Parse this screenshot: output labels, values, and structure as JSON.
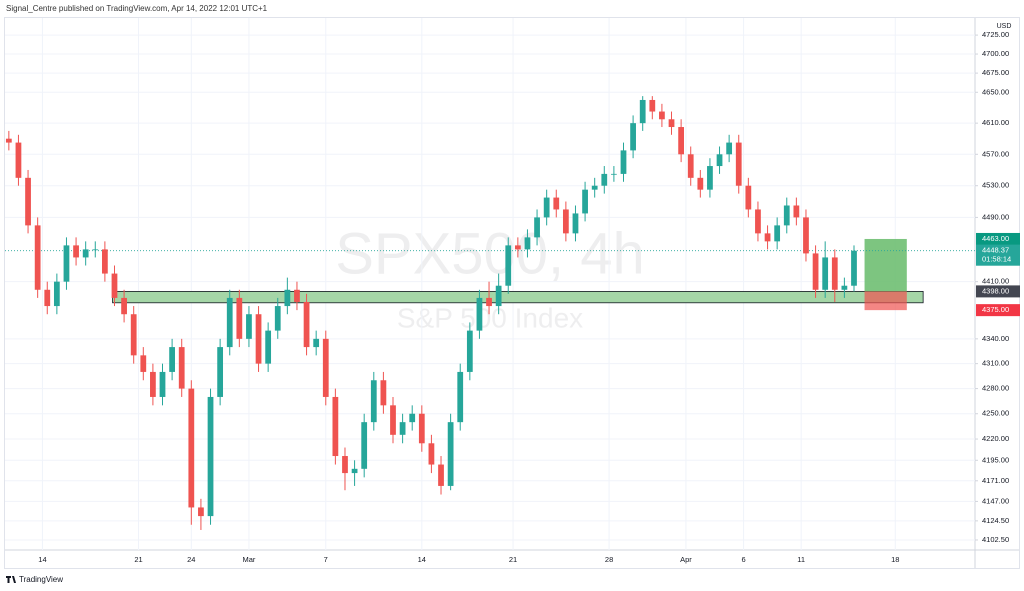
{
  "header": {
    "text": "Signal_Centre published on TradingView.com, Apr 14, 2022 12:01 UTC+1"
  },
  "footer": {
    "brand": "TradingView"
  },
  "chart_data": {
    "type": "candlestick",
    "title": "SPX500, 4h",
    "subtitle": "S&P 500 Index",
    "currency": "USD",
    "log_scale": true,
    "up_color": "#26a69a",
    "down_color": "#ef5350",
    "ylim": [
      4091,
      4745
    ],
    "xlim": [
      -0.4,
      100.6
    ],
    "yticks": [
      {
        "value": 4102.5,
        "label": "4102.50"
      },
      {
        "value": 4124.5,
        "label": "4124.50"
      },
      {
        "value": 4147,
        "label": "4147.00"
      },
      {
        "value": 4171,
        "label": "4171.00"
      },
      {
        "value": 4195,
        "label": "4195.00"
      },
      {
        "value": 4220,
        "label": "4220.00"
      },
      {
        "value": 4250,
        "label": "4250.00"
      },
      {
        "value": 4280,
        "label": "4280.00"
      },
      {
        "value": 4310,
        "label": "4310.00"
      },
      {
        "value": 4340,
        "label": "4340.00"
      },
      {
        "value": 4410,
        "label": "4410.00"
      },
      {
        "value": 4490,
        "label": "4490.00"
      },
      {
        "value": 4530,
        "label": "4530.00"
      },
      {
        "value": 4570,
        "label": "4570.00"
      },
      {
        "value": 4610,
        "label": "4610.00"
      },
      {
        "value": 4650,
        "label": "4650.00"
      },
      {
        "value": 4675,
        "label": "4675.00"
      },
      {
        "value": 4700,
        "label": "4700.00"
      },
      {
        "value": 4725,
        "label": "4725.00"
      }
    ],
    "xticks": [
      {
        "value": 3.5,
        "label": "14"
      },
      {
        "value": 13.5,
        "label": "21"
      },
      {
        "value": 19,
        "label": "24"
      },
      {
        "value": 25,
        "label": "Mar"
      },
      {
        "value": 33,
        "label": "7"
      },
      {
        "value": 43,
        "label": "14"
      },
      {
        "value": 52.5,
        "label": "21"
      },
      {
        "value": 62.5,
        "label": "28"
      },
      {
        "value": 70.5,
        "label": "Apr"
      },
      {
        "value": 76.5,
        "label": "6"
      },
      {
        "value": 82.5,
        "label": "11"
      },
      {
        "value": 92.3,
        "label": "18"
      }
    ],
    "open": [
      4590,
      4585,
      4540,
      4480,
      4400,
      4380,
      4410,
      4455,
      4440,
      4450,
      4450,
      4420,
      4390,
      4370,
      4320,
      4300,
      4270,
      4300,
      4330,
      4280,
      4140,
      4130,
      4270,
      4330,
      4390,
      4340,
      4370,
      4310,
      4350,
      4380,
      4400,
      4385,
      4330,
      4340,
      4270,
      4200,
      4180,
      4185,
      4240,
      4290,
      4260,
      4225,
      4240,
      4250,
      4215,
      4190,
      4165,
      4240,
      4300,
      4350,
      4390,
      4380,
      4405,
      4455,
      4450,
      4465,
      4490,
      4515,
      4500,
      4470,
      4495,
      4525,
      4530,
      4545,
      4545,
      4575,
      4610,
      4640,
      4625,
      4615,
      4605,
      4570,
      4540,
      4525,
      4555,
      4570,
      4585,
      4530,
      4500,
      4470,
      4460,
      4480,
      4505,
      4490,
      4445,
      4400,
      4440,
      4400,
      4405
    ],
    "high": [
      4600,
      4595,
      4550,
      4490,
      4410,
      4420,
      4465,
      4465,
      4460,
      4460,
      4460,
      4430,
      4400,
      4380,
      4330,
      4310,
      4310,
      4340,
      4340,
      4290,
      4150,
      4280,
      4340,
      4400,
      4400,
      4380,
      4380,
      4360,
      4390,
      4415,
      4410,
      4395,
      4350,
      4350,
      4280,
      4210,
      4195,
      4250,
      4300,
      4300,
      4270,
      4250,
      4260,
      4260,
      4225,
      4200,
      4250,
      4310,
      4360,
      4400,
      4410,
      4420,
      4465,
      4465,
      4475,
      4500,
      4525,
      4525,
      4510,
      4505,
      4535,
      4540,
      4555,
      4555,
      4585,
      4620,
      4645,
      4645,
      4635,
      4625,
      4615,
      4580,
      4550,
      4565,
      4580,
      4595,
      4595,
      4540,
      4510,
      4480,
      4490,
      4515,
      4515,
      4500,
      4455,
      4460,
      4450,
      4415,
      4455
    ],
    "low": [
      4575,
      4530,
      4470,
      4390,
      4370,
      4370,
      4400,
      4430,
      4430,
      4440,
      4410,
      4380,
      4360,
      4310,
      4290,
      4260,
      4260,
      4290,
      4270,
      4120,
      4114,
      4120,
      4260,
      4320,
      4330,
      4330,
      4300,
      4300,
      4340,
      4370,
      4375,
      4320,
      4320,
      4260,
      4190,
      4160,
      4165,
      4175,
      4230,
      4250,
      4215,
      4215,
      4230,
      4205,
      4180,
      4155,
      4160,
      4230,
      4290,
      4340,
      4370,
      4370,
      4395,
      4440,
      4440,
      4455,
      4480,
      4490,
      4460,
      4460,
      4485,
      4515,
      4520,
      4535,
      4535,
      4565,
      4600,
      4615,
      4605,
      4595,
      4560,
      4530,
      4515,
      4515,
      4545,
      4560,
      4520,
      4490,
      4460,
      4450,
      4450,
      4470,
      4480,
      4435,
      4390,
      4390,
      4385,
      4390,
      4398
    ],
    "close": [
      4585,
      4540,
      4480,
      4400,
      4380,
      4410,
      4455,
      4440,
      4450,
      4450,
      4420,
      4390,
      4370,
      4320,
      4300,
      4270,
      4300,
      4330,
      4280,
      4140,
      4130,
      4270,
      4330,
      4390,
      4340,
      4370,
      4310,
      4350,
      4380,
      4400,
      4385,
      4330,
      4340,
      4270,
      4200,
      4180,
      4185,
      4240,
      4290,
      4260,
      4225,
      4240,
      4250,
      4215,
      4190,
      4165,
      4240,
      4300,
      4350,
      4390,
      4380,
      4405,
      4455,
      4450,
      4465,
      4490,
      4515,
      4500,
      4470,
      4495,
      4525,
      4530,
      4545,
      4545,
      4575,
      4610,
      4640,
      4625,
      4615,
      4605,
      4570,
      4540,
      4525,
      4555,
      4570,
      4585,
      4530,
      4500,
      4470,
      4460,
      4480,
      4505,
      4490,
      4445,
      4400,
      4440,
      4400,
      4405,
      4448.37
    ],
    "zone": {
      "top": 4398,
      "bottom": 4384,
      "from": 10.8,
      "to": 95.2,
      "color": "#a5d6a7"
    },
    "position": {
      "target": 4463,
      "entry": 4398,
      "stop": 4375,
      "from": 89.1,
      "to": 93.5,
      "profit_color": "#66bb6a",
      "loss_color": "#ef5350"
    },
    "last_price": {
      "value": 4448.37,
      "label": "4448.37",
      "countdown": "01:58:14",
      "color": "#26a69a"
    },
    "price_labels": [
      {
        "value": 4463,
        "label": "4463.00",
        "color": "#089981"
      },
      {
        "value": 4398,
        "label": "4398.00",
        "color": "#434651"
      },
      {
        "value": 4375,
        "label": "4375.00",
        "color": "#f23645"
      }
    ]
  }
}
